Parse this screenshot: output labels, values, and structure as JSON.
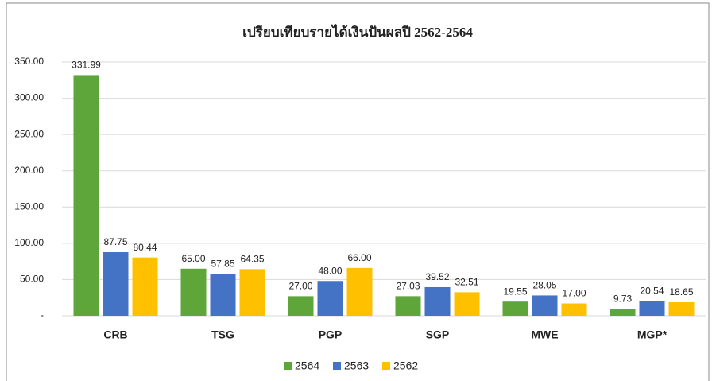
{
  "chart_data": {
    "type": "bar",
    "title": "เปรียบเทียบรายได้เงินปันผลปี 2562-2564",
    "categories": [
      "CRB",
      "TSG",
      "PGP",
      "SGP",
      "MWE",
      "MGP*"
    ],
    "series": [
      {
        "name": "2564",
        "color": "#5ea63a",
        "values": [
          331.99,
          65,
          27,
          27.03,
          19.55,
          9.73
        ],
        "value_labels": [
          "331.99",
          "65.00",
          "27.00",
          "27.03",
          "19.55",
          "9.73"
        ]
      },
      {
        "name": "2563",
        "color": "#4472c4",
        "values": [
          87.75,
          57.85,
          48,
          39.52,
          28.05,
          20.54
        ],
        "value_labels": [
          "87.75",
          "57.85",
          "48.00",
          "39.52",
          "28.05",
          "20.54"
        ]
      },
      {
        "name": "2562",
        "color": "#ffc000",
        "values": [
          80.44,
          64.35,
          66,
          32.51,
          17,
          18.65
        ],
        "value_labels": [
          "80.44",
          "64.35",
          "66.00",
          "32.51",
          "17.00",
          "18.65"
        ]
      }
    ],
    "ylim": [
      0,
      350
    ],
    "yticks": [
      {
        "value": 0,
        "label": "-"
      },
      {
        "value": 50,
        "label": "50.00"
      },
      {
        "value": 100,
        "label": "100.00"
      },
      {
        "value": 150,
        "label": "150.00"
      },
      {
        "value": 200,
        "label": "200.00"
      },
      {
        "value": 250,
        "label": "250.00"
      },
      {
        "value": 300,
        "label": "300.00"
      },
      {
        "value": 350,
        "label": "350.00"
      }
    ],
    "grid": true,
    "legend": "bottom"
  }
}
